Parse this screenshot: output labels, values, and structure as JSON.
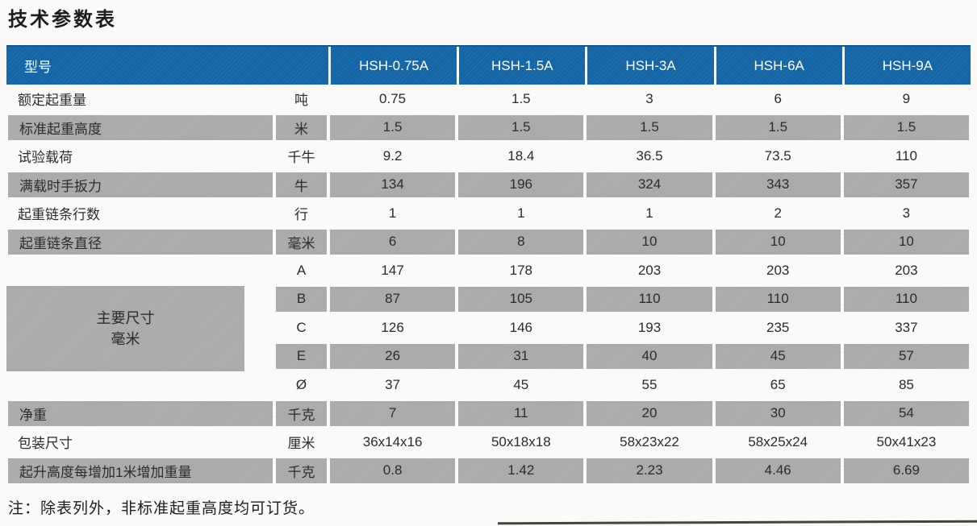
{
  "page": {
    "title": "技术参数表",
    "note": "注：除表列外，非标准起重高度均可订货。"
  },
  "colors": {
    "header_bg": "#1565a6",
    "header_top_edge": "#0f5590",
    "header_text": "#ffffff",
    "row_gray": "#a8a8a7",
    "page_bg": "#fbfaf8",
    "body_text": "#2b2b2b"
  },
  "table": {
    "header": {
      "label": "型号",
      "models": [
        "HSH-0.75A",
        "HSH-1.5A",
        "HSH-3A",
        "HSH-6A",
        "HSH-9A"
      ]
    },
    "dimension_group_label": {
      "line1": "主要尺寸",
      "line2": "毫米"
    },
    "rows": [
      {
        "label": "额定起重量",
        "unit": "吨",
        "values": [
          "0.75",
          "1.5",
          "3",
          "6",
          "9"
        ],
        "shade": "white"
      },
      {
        "label": "标准起重高度",
        "unit": "米",
        "values": [
          "1.5",
          "1.5",
          "1.5",
          "1.5",
          "1.5"
        ],
        "shade": "gray"
      },
      {
        "label": "试验载荷",
        "unit": "千牛",
        "values": [
          "9.2",
          "18.4",
          "36.5",
          "73.5",
          "110"
        ],
        "shade": "white"
      },
      {
        "label": "满载时手扳力",
        "unit": "牛",
        "values": [
          "134",
          "196",
          "324",
          "343",
          "357"
        ],
        "shade": "gray"
      },
      {
        "label": "起重链条行数",
        "unit": "行",
        "values": [
          "1",
          "1",
          "1",
          "2",
          "3"
        ],
        "shade": "white"
      },
      {
        "label": "起重链条直径",
        "unit": "毫米",
        "values": [
          "6",
          "8",
          "10",
          "10",
          "10"
        ],
        "shade": "gray"
      },
      {
        "label": "",
        "unit": "A",
        "values": [
          "147",
          "178",
          "203",
          "203",
          "203"
        ],
        "shade": "white",
        "group": "dims"
      },
      {
        "label": "",
        "unit": "B",
        "values": [
          "87",
          "105",
          "110",
          "110",
          "110"
        ],
        "shade": "gray",
        "group": "dims"
      },
      {
        "label": "",
        "unit": "C",
        "values": [
          "126",
          "146",
          "193",
          "235",
          "337"
        ],
        "shade": "white",
        "group": "dims"
      },
      {
        "label": "",
        "unit": "E",
        "values": [
          "26",
          "31",
          "40",
          "45",
          "57"
        ],
        "shade": "gray",
        "group": "dims"
      },
      {
        "label": "",
        "unit": "Ø",
        "values": [
          "37",
          "45",
          "55",
          "65",
          "85"
        ],
        "shade": "white",
        "group": "dims"
      },
      {
        "label": "净重",
        "unit": "千克",
        "values": [
          "7",
          "11",
          "20",
          "30",
          "54"
        ],
        "shade": "gray"
      },
      {
        "label": "包装尺寸",
        "unit": "厘米",
        "values": [
          "36x14x16",
          "50x18x18",
          "58x23x22",
          "58x25x24",
          "50x41x23"
        ],
        "shade": "white"
      },
      {
        "label": "起升高度每增加1米增加重量",
        "unit": "千克",
        "values": [
          "0.8",
          "1.42",
          "2.23",
          "4.46",
          "6.69"
        ],
        "shade": "gray"
      }
    ]
  }
}
